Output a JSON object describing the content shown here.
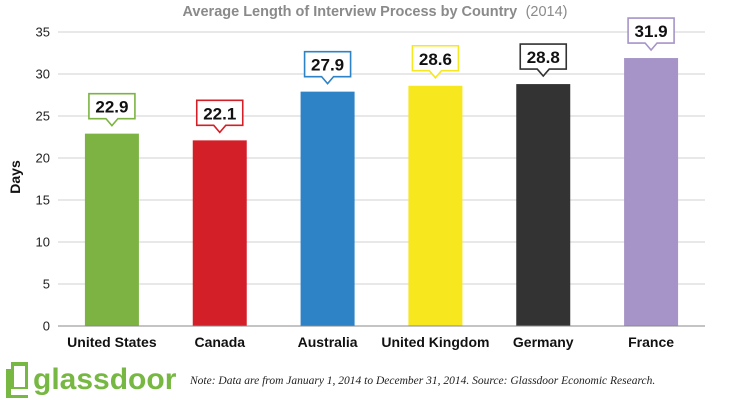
{
  "chart_data": {
    "type": "bar",
    "title": "Average Length of Interview Process by Country",
    "subtitle": "(2014)",
    "ylabel": "Days",
    "xlabel": "",
    "ylim": [
      0,
      35
    ],
    "yticks": [
      0,
      5,
      10,
      15,
      20,
      25,
      30,
      35
    ],
    "grid": true,
    "categories": [
      "United States",
      "Canada",
      "Australia",
      "United Kingdom",
      "Germany",
      "France"
    ],
    "values": [
      22.9,
      22.1,
      27.9,
      28.6,
      28.8,
      31.9
    ],
    "data_labels": [
      "22.9",
      "22.1",
      "27.9",
      "28.6",
      "28.8",
      "31.9"
    ],
    "colors": [
      "#7cb342",
      "#d32028",
      "#2e82c6",
      "#f6e71e",
      "#333333",
      "#a694c8"
    ]
  },
  "footer": {
    "logo_text": "glassdoor",
    "logo_color": "#77b843",
    "note": "Note: Data are from January 1, 2014 to December 31, 2014. Source: Glassdoor Economic Research."
  }
}
